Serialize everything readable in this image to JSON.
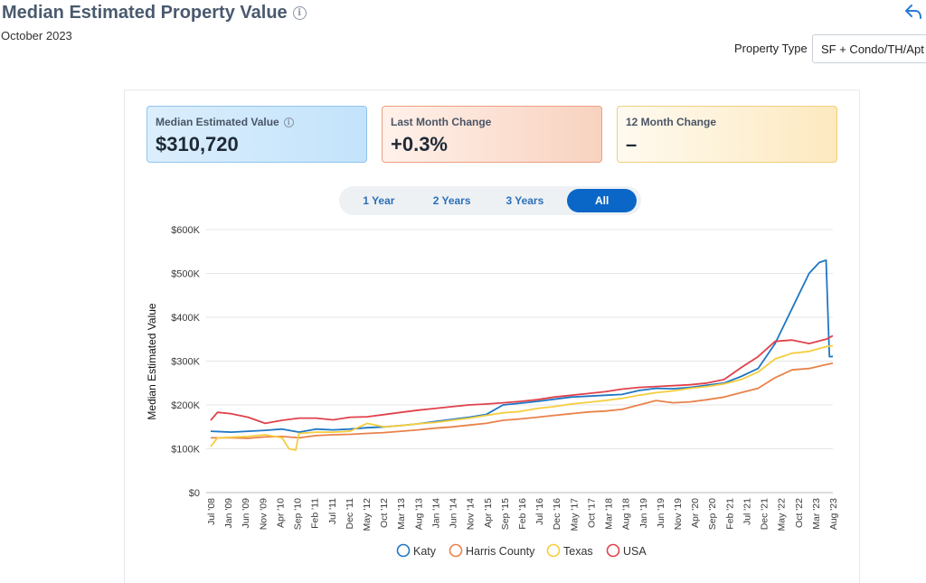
{
  "header": {
    "title": "Median Estimated Property Value",
    "subtitle": "October 2023",
    "property_type_label": "Property Type",
    "property_type_value": "SF + Condo/TH/Apt"
  },
  "cards": [
    {
      "label": "Median Estimated Value",
      "value": "$310,720"
    },
    {
      "label": "Last Month Change",
      "value": "+0.3%"
    },
    {
      "label": "12 Month Change",
      "value": "–"
    }
  ],
  "ranges": {
    "options": [
      "1 Year",
      "2 Years",
      "3 Years",
      "All"
    ],
    "selected": "All"
  },
  "colors": {
    "Katy": "#1f77c4",
    "Harris County": "#e8824a",
    "Texas": "#f5cd3d",
    "USA": "#e0424c"
  },
  "chart_data": {
    "type": "line",
    "xlabel": "",
    "ylabel": "Median Estimated Value",
    "ylim": [
      0,
      600000
    ],
    "yticks": [
      "$0",
      "$100K",
      "$200K",
      "$300K",
      "$400K",
      "$500K",
      "$600K"
    ],
    "xticks": [
      "Jul '08",
      "Jan '09",
      "Jun '09",
      "Nov '09",
      "Apr '10",
      "Sep '10",
      "Feb '11",
      "Jul '11",
      "Dec '11",
      "May '12",
      "Oct '12",
      "Mar '13",
      "Aug '13",
      "Jan '14",
      "Jun '14",
      "Nov '14",
      "Apr '15",
      "Sep '15",
      "Feb '16",
      "Jul '16",
      "Dec '16",
      "May '17",
      "Oct '17",
      "Mar '18",
      "Aug '18",
      "Jan '19",
      "Jun '19",
      "Nov '19",
      "Apr '20",
      "Sep '20",
      "Feb '21",
      "Jul '21",
      "Dec '21",
      "May '22",
      "Oct '22",
      "Mar '23",
      "Aug '23"
    ],
    "grid": true,
    "legend_position": "bottom",
    "series": [
      {
        "name": "Katy",
        "points": [
          [
            "2008-07",
            140000
          ],
          [
            "2009-01",
            138000
          ],
          [
            "2009-06",
            140000
          ],
          [
            "2009-11",
            142000
          ],
          [
            "2010-04",
            145000
          ],
          [
            "2010-09",
            138000
          ],
          [
            "2011-02",
            145000
          ],
          [
            "2011-07",
            143000
          ],
          [
            "2011-12",
            145000
          ],
          [
            "2012-05",
            148000
          ],
          [
            "2012-10",
            150000
          ],
          [
            "2013-03",
            153000
          ],
          [
            "2013-08",
            157000
          ],
          [
            "2014-01",
            162000
          ],
          [
            "2014-06",
            167000
          ],
          [
            "2014-11",
            172000
          ],
          [
            "2015-04",
            178000
          ],
          [
            "2015-09",
            200000
          ],
          [
            "2016-02",
            204000
          ],
          [
            "2016-07",
            208000
          ],
          [
            "2016-12",
            213000
          ],
          [
            "2017-05",
            218000
          ],
          [
            "2017-10",
            220000
          ],
          [
            "2018-03",
            222000
          ],
          [
            "2018-08",
            224000
          ],
          [
            "2019-01",
            233000
          ],
          [
            "2019-06",
            238000
          ],
          [
            "2019-11",
            237000
          ],
          [
            "2020-04",
            240000
          ],
          [
            "2020-09",
            245000
          ],
          [
            "2021-02",
            250000
          ],
          [
            "2021-07",
            265000
          ],
          [
            "2021-12",
            283000
          ],
          [
            "2022-05",
            340000
          ],
          [
            "2022-10",
            420000
          ],
          [
            "2023-03",
            500000
          ],
          [
            "2023-06",
            525000
          ],
          [
            "2023-08",
            530000
          ],
          [
            "2023-09",
            310000
          ],
          [
            "2023-10",
            310720
          ]
        ]
      },
      {
        "name": "Harris County",
        "points": [
          [
            "2008-07",
            125000
          ],
          [
            "2009-01",
            125000
          ],
          [
            "2009-06",
            124000
          ],
          [
            "2009-11",
            127000
          ],
          [
            "2010-04",
            128000
          ],
          [
            "2010-09",
            125000
          ],
          [
            "2011-02",
            130000
          ],
          [
            "2011-07",
            132000
          ],
          [
            "2011-12",
            133000
          ],
          [
            "2012-05",
            135000
          ],
          [
            "2012-10",
            137000
          ],
          [
            "2013-03",
            140000
          ],
          [
            "2013-08",
            143000
          ],
          [
            "2014-01",
            147000
          ],
          [
            "2014-06",
            150000
          ],
          [
            "2014-11",
            154000
          ],
          [
            "2015-04",
            158000
          ],
          [
            "2015-09",
            165000
          ],
          [
            "2016-02",
            168000
          ],
          [
            "2016-07",
            172000
          ],
          [
            "2016-12",
            176000
          ],
          [
            "2017-05",
            180000
          ],
          [
            "2017-10",
            184000
          ],
          [
            "2018-03",
            186000
          ],
          [
            "2018-08",
            190000
          ],
          [
            "2019-01",
            200000
          ],
          [
            "2019-06",
            210000
          ],
          [
            "2019-11",
            205000
          ],
          [
            "2020-04",
            207000
          ],
          [
            "2020-09",
            212000
          ],
          [
            "2021-02",
            218000
          ],
          [
            "2021-07",
            228000
          ],
          [
            "2021-12",
            238000
          ],
          [
            "2022-05",
            262000
          ],
          [
            "2022-10",
            280000
          ],
          [
            "2023-03",
            283000
          ],
          [
            "2023-08",
            292000
          ],
          [
            "2023-10",
            295000
          ]
        ]
      },
      {
        "name": "Texas",
        "points": [
          [
            "2008-07",
            105000
          ],
          [
            "2008-09",
            125000
          ],
          [
            "2009-06",
            128000
          ],
          [
            "2009-11",
            132000
          ],
          [
            "2010-04",
            125000
          ],
          [
            "2010-06",
            100000
          ],
          [
            "2010-08",
            97000
          ],
          [
            "2010-09",
            135000
          ],
          [
            "2011-02",
            138000
          ],
          [
            "2011-07",
            138000
          ],
          [
            "2011-12",
            140000
          ],
          [
            "2012-05",
            158000
          ],
          [
            "2012-10",
            150000
          ],
          [
            "2013-03",
            153000
          ],
          [
            "2013-08",
            157000
          ],
          [
            "2014-01",
            160000
          ],
          [
            "2014-06",
            165000
          ],
          [
            "2014-11",
            170000
          ],
          [
            "2015-04",
            176000
          ],
          [
            "2015-09",
            182000
          ],
          [
            "2016-02",
            185000
          ],
          [
            "2016-07",
            192000
          ],
          [
            "2016-12",
            196000
          ],
          [
            "2017-05",
            202000
          ],
          [
            "2017-10",
            206000
          ],
          [
            "2018-03",
            210000
          ],
          [
            "2018-08",
            215000
          ],
          [
            "2019-01",
            222000
          ],
          [
            "2019-06",
            228000
          ],
          [
            "2019-11",
            232000
          ],
          [
            "2020-04",
            238000
          ],
          [
            "2020-09",
            242000
          ],
          [
            "2021-02",
            248000
          ],
          [
            "2021-07",
            258000
          ],
          [
            "2021-12",
            275000
          ],
          [
            "2022-05",
            305000
          ],
          [
            "2022-10",
            318000
          ],
          [
            "2023-03",
            322000
          ],
          [
            "2023-08",
            333000
          ],
          [
            "2023-10",
            335000
          ]
        ]
      },
      {
        "name": "USA",
        "points": [
          [
            "2008-07",
            165000
          ],
          [
            "2008-09",
            183000
          ],
          [
            "2009-01",
            180000
          ],
          [
            "2009-06",
            172000
          ],
          [
            "2009-11",
            158000
          ],
          [
            "2010-04",
            165000
          ],
          [
            "2010-09",
            170000
          ],
          [
            "2011-02",
            170000
          ],
          [
            "2011-07",
            166000
          ],
          [
            "2011-12",
            172000
          ],
          [
            "2012-05",
            173000
          ],
          [
            "2012-10",
            178000
          ],
          [
            "2013-03",
            183000
          ],
          [
            "2013-08",
            188000
          ],
          [
            "2014-01",
            192000
          ],
          [
            "2014-06",
            196000
          ],
          [
            "2014-11",
            200000
          ],
          [
            "2015-04",
            202000
          ],
          [
            "2015-09",
            205000
          ],
          [
            "2016-02",
            208000
          ],
          [
            "2016-07",
            212000
          ],
          [
            "2016-12",
            218000
          ],
          [
            "2017-05",
            222000
          ],
          [
            "2017-10",
            226000
          ],
          [
            "2018-03",
            230000
          ],
          [
            "2018-08",
            236000
          ],
          [
            "2019-01",
            240000
          ],
          [
            "2019-06",
            242000
          ],
          [
            "2019-11",
            244000
          ],
          [
            "2020-04",
            246000
          ],
          [
            "2020-09",
            250000
          ],
          [
            "2021-02",
            258000
          ],
          [
            "2021-07",
            285000
          ],
          [
            "2021-12",
            310000
          ],
          [
            "2022-05",
            345000
          ],
          [
            "2022-10",
            348000
          ],
          [
            "2023-03",
            340000
          ],
          [
            "2023-08",
            350000
          ],
          [
            "2023-10",
            358000
          ]
        ]
      }
    ]
  }
}
